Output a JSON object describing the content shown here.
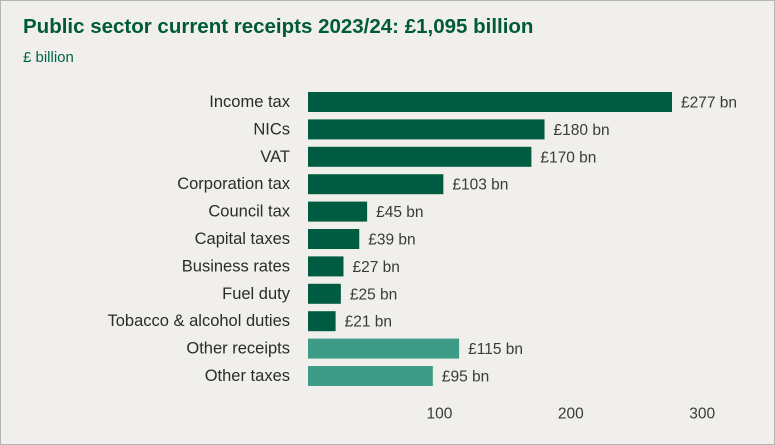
{
  "chart_data": {
    "type": "bar",
    "orientation": "horizontal",
    "title": "Public sector current receipts 2023/24: £1,095 billion",
    "subtitle": "£ billion",
    "categories": [
      "Income tax",
      "NICs",
      "VAT",
      "Corporation tax",
      "Council tax",
      "Capital taxes",
      "Business rates",
      "Fuel duty",
      "Tobacco & alcohol duties",
      "Other receipts",
      "Other taxes"
    ],
    "values": [
      277,
      180,
      170,
      103,
      45,
      39,
      27,
      25,
      21,
      115,
      95
    ],
    "data_labels": [
      "£277 bn",
      "£180 bn",
      "£170 bn",
      "£103 bn",
      "£45 bn",
      "£39 bn",
      "£27 bn",
      "£25 bn",
      "£21 bn",
      "£115 bn",
      "£95 bn"
    ],
    "bar_colors": [
      "#005c40",
      "#005c40",
      "#005c40",
      "#005c40",
      "#005c40",
      "#005c40",
      "#005c40",
      "#005c40",
      "#005c40",
      "#3d9c87",
      "#3d9c87"
    ],
    "xticks": [
      100,
      200,
      300
    ],
    "xlim": [
      0,
      300
    ],
    "grid": false,
    "legend": "none"
  },
  "colors": {
    "title": "#005a3a",
    "background": "#f0efeb",
    "bar_dark": "#005c40",
    "bar_light": "#3d9c87"
  }
}
